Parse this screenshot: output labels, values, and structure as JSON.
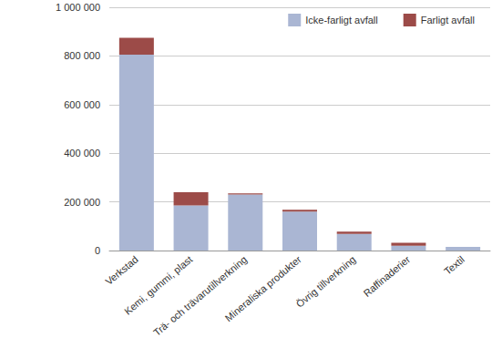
{
  "chart_data": {
    "type": "bar",
    "stacked": true,
    "grid": true,
    "legend": "upper right",
    "categories": [
      "Verkstad",
      "Kemi, gummi, plast",
      "Trä- och trävarutillverkning",
      "Mineraliska produkter",
      "Övrig tillverkning",
      "Raffinaderier",
      "Textil"
    ],
    "series": [
      {
        "name": "Icke-farligt avfall",
        "color": "#aab6d3",
        "values": [
          805000,
          185000,
          230000,
          160000,
          68000,
          20000,
          15000
        ]
      },
      {
        "name": "Farligt avfall",
        "color": "#9c4b48",
        "values": [
          70000,
          55000,
          5000,
          8000,
          10000,
          12000,
          0
        ]
      }
    ],
    "ylim": [
      0,
      1000000
    ],
    "yticks": [
      0,
      {
        "value": 200000,
        "label": "200 000"
      },
      {
        "value": 400000,
        "label": "400 000"
      },
      {
        "value": 600000,
        "label": "600 000"
      },
      {
        "value": 800000,
        "label": "800 000"
      },
      {
        "value": 1000000,
        "label": "1 000 000"
      }
    ]
  }
}
